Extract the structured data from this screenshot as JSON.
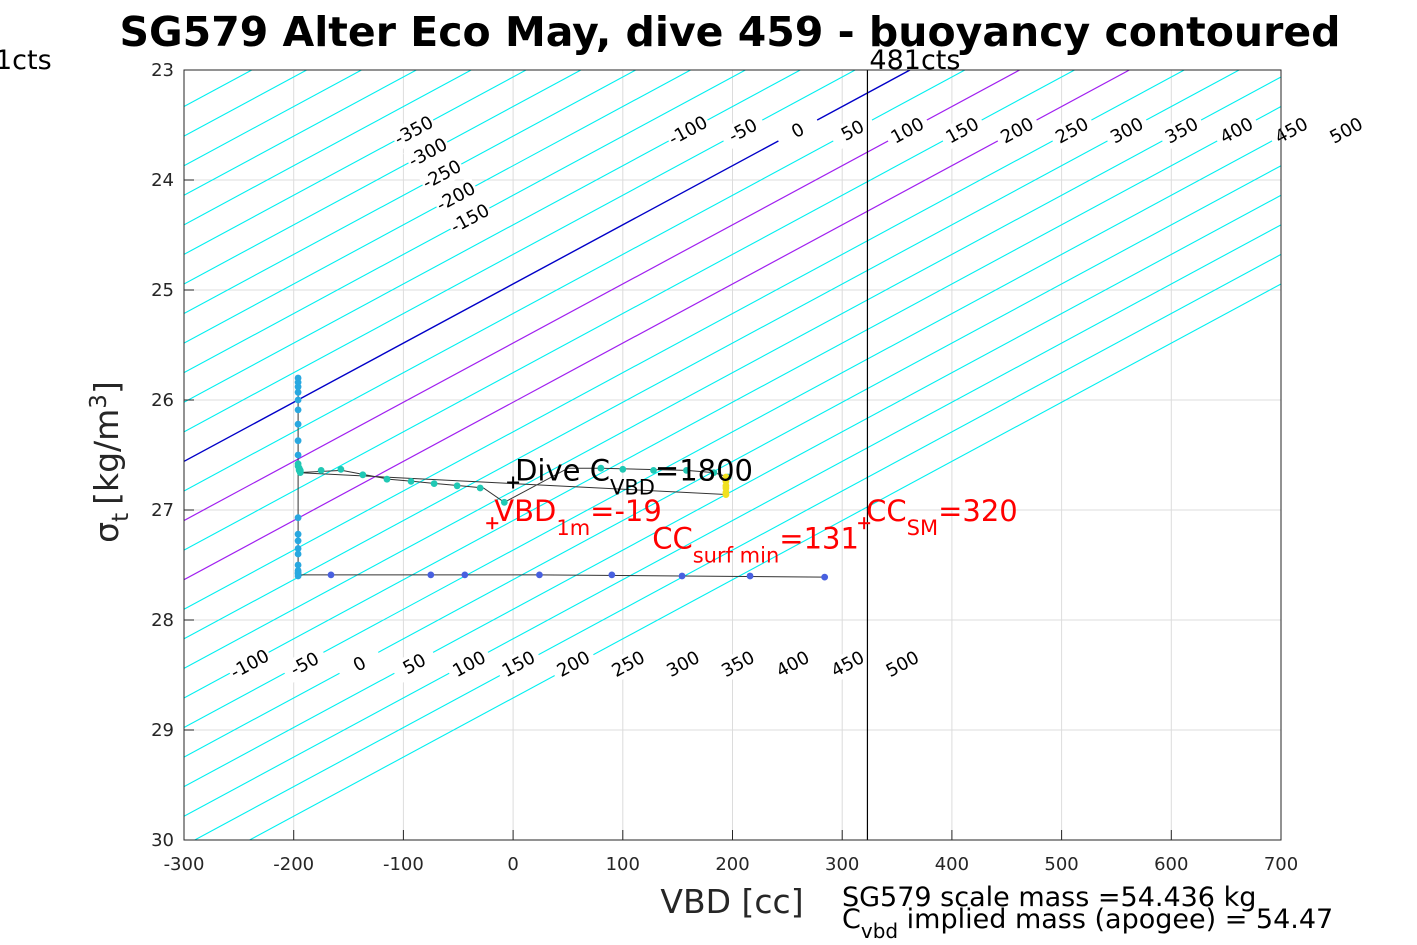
{
  "chart_data": {
    "type": "scatter",
    "title": "SG579 Alter Eco May, dive 459 - buoyancy contoured",
    "xlabel": "VBD [cc]",
    "ylabel_main": "σ",
    "ylabel_sub": "t",
    "ylabel_unit": "[kg/m",
    "ylabel_sup": "3",
    "ylabel_close": "]",
    "xlim": [
      -300,
      700
    ],
    "ylim": [
      23,
      30
    ],
    "y_reversed": true,
    "grid": true,
    "x_ticks": [
      -300,
      -200,
      -100,
      0,
      100,
      200,
      300,
      400,
      500,
      600,
      700
    ],
    "x_tick_labels": [
      "-300",
      "-200",
      "-100",
      "0",
      "100",
      "200",
      "300",
      "400",
      "500",
      "600",
      "700"
    ],
    "y_ticks": [
      23,
      24,
      25,
      26,
      27,
      28,
      29,
      30
    ],
    "y_tick_labels": [
      "23",
      "24",
      "25",
      "26",
      "27",
      "28",
      "29",
      "30"
    ],
    "contours": {
      "slope_vbd_per_sigma": -186,
      "upper_ref_sigma": 24.3,
      "upper_ref_intercept": 120,
      "upper_values": [
        -350,
        -300,
        -250,
        -200,
        -150,
        -100,
        -50,
        0,
        50,
        100,
        150,
        200,
        250,
        300,
        350,
        400,
        450,
        500
      ],
      "upper_labels": [
        "-350",
        "-300",
        "-250",
        "-200",
        "-150",
        "-100",
        "-50",
        "0",
        "50",
        "100",
        "150",
        "200",
        "250",
        "300",
        "350",
        "400",
        "450",
        "500"
      ],
      "upper_label_sigma": [
        23.55,
        23.75,
        23.95,
        24.15,
        24.35,
        23.55,
        23.55,
        23.55,
        23.55,
        23.55,
        23.55,
        23.55,
        23.55,
        23.55,
        23.55,
        23.55,
        23.55,
        23.55
      ],
      "lower_values": [
        -100,
        -50,
        0,
        50,
        100,
        150,
        200,
        250,
        300,
        350,
        400,
        450,
        500
      ],
      "lower_labels": [
        "-100",
        "-50",
        "0",
        "50",
        "100",
        "150",
        "200",
        "250",
        "300",
        "350",
        "400",
        "450",
        "500"
      ],
      "lower_label_sigma": 28.4,
      "lower_ref_x_at_label": [
        -240,
        -190,
        -140,
        -90,
        -40,
        5,
        55,
        105,
        155,
        205,
        255,
        305,
        355
      ],
      "colors": {
        "cyan": "#00f0f0",
        "zero": "#0000c8",
        "magenta": "#a020f0"
      },
      "magenta_values": [
        100,
        200
      ]
    },
    "vertical_line_x": 323,
    "vertical_line_label": "481cts",
    "left_corner_label": "1cts",
    "series": [
      {
        "color": "#20c8b4",
        "x": [
          -196,
          -196,
          -195,
          -195,
          -195,
          -194,
          -194,
          -194,
          -175,
          -157,
          -137,
          -115,
          -93,
          -72,
          -51,
          -30,
          -8
        ],
        "y": [
          26.58,
          26.6,
          26.62,
          26.63,
          26.64,
          26.66,
          26.65,
          26.64,
          26.64,
          26.63,
          26.68,
          26.72,
          26.74,
          26.76,
          26.78,
          26.8,
          26.93
        ]
      },
      {
        "color": "#20c8b4",
        "x": [
          80,
          100,
          128,
          158,
          183,
          196
        ],
        "y": [
          26.62,
          26.63,
          26.64,
          26.64,
          26.66,
          26.7
        ]
      },
      {
        "color": "#28a8e0",
        "x": [
          -196,
          -196,
          -196,
          -196,
          -196,
          -196,
          -196,
          -196,
          -196,
          -196,
          -196,
          -196,
          -196,
          -196,
          -196,
          -196,
          -196,
          -196,
          -196
        ],
        "y": [
          25.8,
          25.84,
          25.88,
          25.93,
          26.0,
          26.09,
          26.22,
          26.37,
          26.5,
          27.07,
          27.22,
          27.28,
          27.35,
          27.4,
          27.5,
          27.55,
          27.57,
          27.58,
          27.6
        ]
      },
      {
        "color": "#4860e0",
        "x": [
          -166,
          -75,
          -44,
          24,
          90,
          154,
          216,
          284
        ],
        "y": [
          27.59,
          27.59,
          27.59,
          27.59,
          27.59,
          27.6,
          27.6,
          27.61
        ]
      },
      {
        "color": "#f0e020",
        "x": [
          194,
          194,
          194,
          194,
          194,
          194
        ],
        "y": [
          26.7,
          26.74,
          26.78,
          26.8,
          26.84,
          26.86
        ]
      }
    ],
    "trace_path": {
      "x": [
        -196,
        -196,
        -196,
        -156,
        -135,
        -113,
        -91,
        -70,
        -48,
        -27,
        -8,
        50,
        80,
        158,
        183,
        196,
        196,
        196,
        196,
        -196,
        -196,
        -196,
        -166,
        -75,
        24,
        154,
        284
      ],
      "y": [
        25.8,
        26.58,
        26.66,
        26.64,
        26.68,
        26.72,
        26.74,
        26.76,
        26.78,
        26.8,
        26.93,
        26.62,
        26.62,
        26.64,
        26.66,
        26.7,
        26.72,
        26.8,
        26.86,
        26.66,
        27.1,
        27.59,
        27.59,
        27.59,
        27.59,
        27.6,
        27.61
      ]
    },
    "annotations": [
      {
        "id": "dive-cvbd",
        "x": 0,
        "y": 26.75,
        "color": "#000000",
        "main": "Dive C",
        "sub": "VBD",
        "tail": "=1800",
        "marker": true
      },
      {
        "id": "vbd-1m",
        "x": -19,
        "y": 27.12,
        "color": "#ff0000",
        "main": "VBD",
        "sub": "1m",
        "tail": "=-19",
        "marker": true
      },
      {
        "id": "cc-surf-min",
        "x": 125,
        "y": 27.37,
        "color": "#ff0000",
        "main": "CC",
        "sub": "surf min",
        "tail": "=131",
        "marker": false
      },
      {
        "id": "cc-sm",
        "x": 320,
        "y": 27.12,
        "color": "#ff0000",
        "main": "CC",
        "sub": "SM",
        "tail": "=320",
        "marker": true
      }
    ],
    "footer": {
      "line1": "SG579 scale mass =54.436 kg",
      "line2_main": "C",
      "line2_sub": "vbd",
      "line2_tail": " implied mass (apogee) = 54.47"
    }
  }
}
